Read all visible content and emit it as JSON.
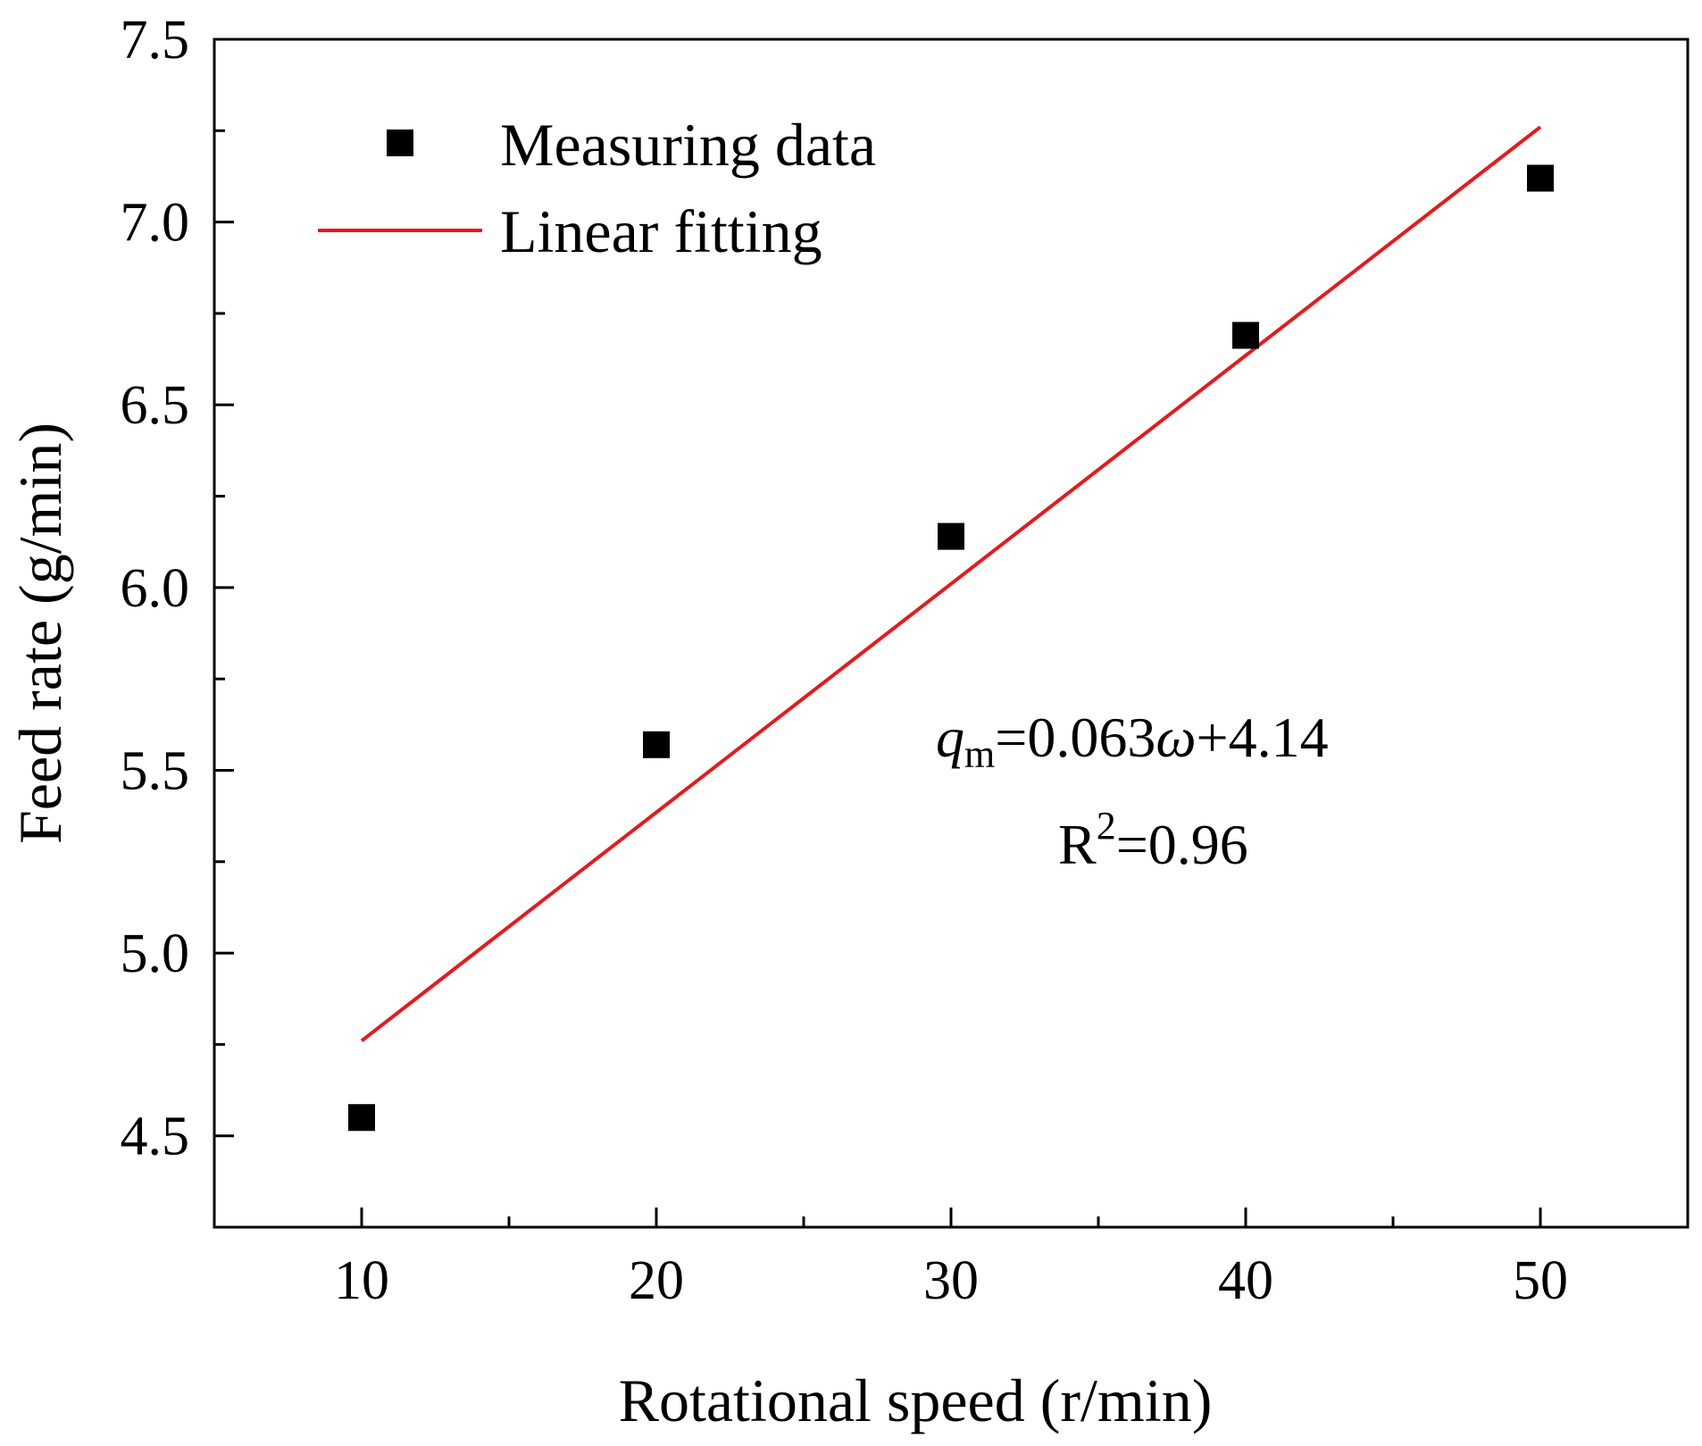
{
  "chart_data": {
    "type": "scatter",
    "title": "",
    "xlabel": "Rotational speed (r/min)",
    "ylabel": "Feed rate (g/min)",
    "xlim": [
      5,
      55
    ],
    "ylim": [
      4.25,
      7.5
    ],
    "x_ticks": [
      10,
      20,
      30,
      40,
      50
    ],
    "x_minor_ticks": [
      15,
      25,
      35,
      45
    ],
    "y_ticks": [
      4.5,
      5.0,
      5.5,
      6.0,
      6.5,
      7.0,
      7.5
    ],
    "y_tick_labels": [
      "4.5",
      "5.0",
      "5.5",
      "6.0",
      "6.5",
      "7.0",
      "7.5"
    ],
    "y_minor_ticks": [
      4.75,
      5.25,
      5.75,
      6.25,
      6.75,
      7.25
    ],
    "series": [
      {
        "name": "Measuring data",
        "kind": "scatter",
        "marker": "square",
        "color": "#000000",
        "x": [
          10,
          20,
          30,
          40,
          50
        ],
        "y": [
          4.55,
          5.57,
          6.14,
          6.69,
          7.12
        ]
      },
      {
        "name": "Linear fitting",
        "kind": "line",
        "color": "#e8191b",
        "x": [
          10,
          50
        ],
        "y": [
          4.76,
          7.26
        ]
      }
    ],
    "legend": {
      "position": "top-left",
      "entries": [
        "Measuring data",
        "Linear fitting"
      ]
    },
    "annotations": {
      "equation": {
        "var": "q",
        "var_sub": "m",
        "eq_part": "=0.063",
        "omega": "ω",
        "const_part": "+4.14"
      },
      "r2": {
        "base": "R",
        "sup": "2",
        "value": "=0.96"
      }
    },
    "grid": false
  }
}
